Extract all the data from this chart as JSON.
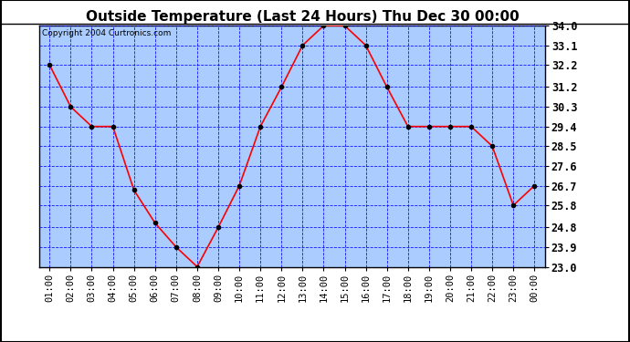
{
  "title": "Outside Temperature (Last 24 Hours) Thu Dec 30 00:00",
  "copyright": "Copyright 2004 Curtronics.com",
  "x_labels": [
    "01:00",
    "02:00",
    "03:00",
    "04:00",
    "05:00",
    "06:00",
    "07:00",
    "08:00",
    "09:00",
    "10:00",
    "11:00",
    "12:00",
    "13:00",
    "14:00",
    "15:00",
    "16:00",
    "17:00",
    "18:00",
    "19:00",
    "20:00",
    "21:00",
    "22:00",
    "23:00",
    "00:00"
  ],
  "y_values": [
    32.2,
    30.3,
    29.4,
    29.4,
    26.5,
    25.0,
    23.9,
    23.0,
    24.8,
    26.7,
    29.4,
    31.2,
    33.1,
    34.0,
    34.0,
    33.1,
    31.2,
    29.4,
    29.4,
    29.4,
    29.4,
    28.5,
    25.8,
    26.7
  ],
  "y_min": 23.0,
  "y_max": 34.0,
  "y_ticks": [
    23.0,
    23.9,
    24.8,
    25.8,
    26.7,
    27.6,
    28.5,
    29.4,
    30.3,
    31.2,
    32.2,
    33.1,
    34.0
  ],
  "line_color": "red",
  "marker_color": "black",
  "marker_size": 3,
  "grid_color": "blue",
  "bg_color": "#aaccff",
  "title_fontsize": 11,
  "copyright_fontsize": 6.5,
  "tick_fontsize": 7.5,
  "ytick_fontsize": 8.5
}
